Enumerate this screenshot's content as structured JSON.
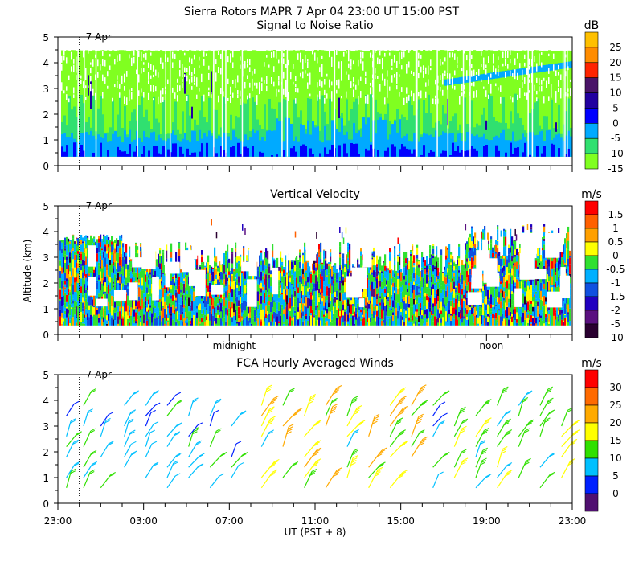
{
  "header": {
    "title": "Sierra Rotors   MAPR   7 Apr 04   23:00 UT   15:00   PST"
  },
  "ylabel": "Altitude (km)",
  "xlabel": "UT  (PST + 8)",
  "date_marker": {
    "label": "7 Apr",
    "hour": 1.0
  },
  "time_markers": [
    {
      "label": "midnight",
      "hour": 8.0
    },
    {
      "label": "noon",
      "hour": 20.0
    }
  ],
  "chart_data": [
    {
      "type": "heatmap",
      "title": "Signal to Noise Ratio",
      "xlabel": "UT  (PST + 8)",
      "ylabel": "Altitude (km)",
      "xlim": [
        0,
        24
      ],
      "ylim": [
        0,
        5
      ],
      "yticks": [
        "0",
        "1",
        "2",
        "3",
        "4",
        "5"
      ],
      "colorbar": {
        "unit": "dB",
        "labels": [
          "25",
          "20",
          "15",
          "10",
          "5",
          "0",
          "-5",
          "-10",
          "-15"
        ],
        "colors": [
          "#ffc000",
          "#ff8c00",
          "#ff2400",
          "#4a1468",
          "#2200a0",
          "#0000ff",
          "#00aaff",
          "#30e070",
          "#80ff20"
        ]
      },
      "summary": "High SNR (-5 to 0 dB, blue) below ~1 km throughout; mostly -10 to -15 dB (green) from 1 to 4.5 km; rising layer near 3.5-4 km after 19:00 UT."
    },
    {
      "type": "heatmap",
      "title": "Vertical Velocity",
      "xlabel": "UT  (PST + 8)",
      "ylabel": "Altitude (km)",
      "xlim": [
        0,
        24
      ],
      "ylim": [
        0,
        5
      ],
      "yticks": [
        "0",
        "1",
        "2",
        "3",
        "4",
        "5"
      ],
      "colorbar": {
        "unit": "m/s",
        "labels": [
          "1.5",
          "1",
          "0.5",
          "0",
          "-0.5",
          "-1",
          "-1.5",
          "-2",
          "-5",
          "-10"
        ],
        "colors": [
          "#ff0000",
          "#ff6000",
          "#ffa000",
          "#ffff00",
          "#30e030",
          "#00b0ff",
          "#1050e0",
          "#2000c0",
          "#5a1080",
          "#2a0030"
        ]
      },
      "summary": "Mixed up/downdrafts from 0.3 to ~4 km; strong updrafts (red) in lowest km, downward motion (blue) common 2-3 km between 14:00 and 17:00 UT."
    },
    {
      "type": "scatter",
      "title": "FCA Hourly Averaged Winds",
      "xlabel": "UT  (PST + 8)",
      "ylabel": "Altitude (km)",
      "xlim": [
        0,
        24
      ],
      "ylim": [
        0,
        5
      ],
      "xticks": [
        "23:00",
        "03:00",
        "07:00",
        "11:00",
        "15:00",
        "19:00",
        "23:00"
      ],
      "yticks": [
        "0",
        "1",
        "2",
        "3",
        "4",
        "5"
      ],
      "colorbar": {
        "unit": "m/s",
        "labels": [
          "30",
          "25",
          "20",
          "15",
          "10",
          "5",
          "0"
        ],
        "colors": [
          "#ff0000",
          "#ff6a00",
          "#ffaa00",
          "#ffff00",
          "#30e000",
          "#00c0ff",
          "#0020ff",
          "#501070"
        ]
      },
      "summary": "Hourly wind barbs; speeds 10-20 m/s (green/yellow) from 11:00 to 17:00 UT, weaker 0-10 m/s (blue) near the ground and early in period."
    }
  ]
}
